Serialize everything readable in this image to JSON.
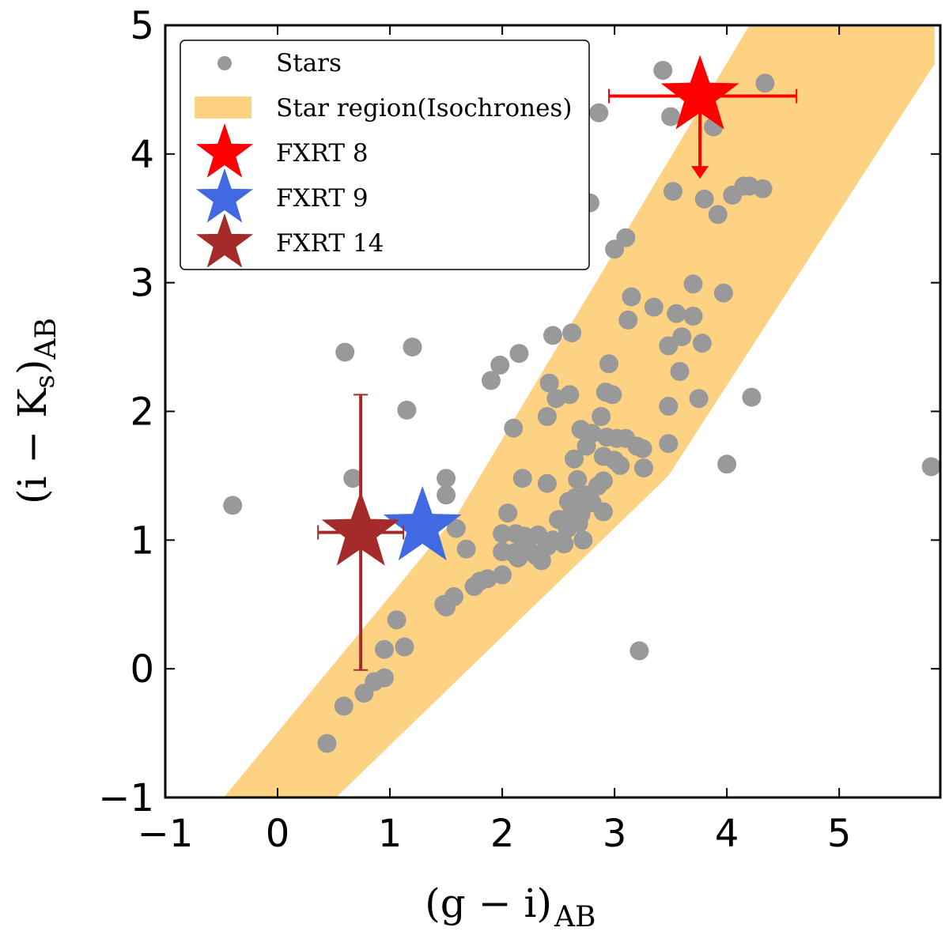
{
  "chart_data": {
    "type": "scatter",
    "title": "",
    "xlabel": {
      "main": "(g − i)",
      "sub": "AB"
    },
    "ylabel": {
      "main": "(i − K",
      "sub1": "s",
      "close": ")",
      "sub2": "AB"
    },
    "xlim": [
      -1,
      5.9
    ],
    "ylim": [
      -1,
      5
    ],
    "xticks": [
      -1,
      0,
      1,
      2,
      3,
      4,
      5
    ],
    "yticks": [
      -1,
      0,
      1,
      2,
      3,
      4,
      5
    ],
    "xtick_labels": [
      "−1",
      "0",
      "1",
      "2",
      "3",
      "4",
      "5"
    ],
    "ytick_labels": [
      "−1",
      "0",
      "1",
      "2",
      "3",
      "4",
      "5"
    ],
    "legend_position": "top-left",
    "legend": [
      {
        "label": "Stars",
        "marker": "circle",
        "color": "#999999"
      },
      {
        "label": "Star region(Isochrones)",
        "marker": "patch",
        "color": "#fdd282"
      },
      {
        "label": "FXRT 8",
        "marker": "star",
        "color": "#ff0000"
      },
      {
        "label": "FXRT 9",
        "marker": "star",
        "color": "#4169e1"
      },
      {
        "label": "FXRT 14",
        "marker": "star",
        "color": "#a52a2a"
      }
    ],
    "region": {
      "name": "Star region(Isochrones)",
      "color": "#fdd282",
      "polygon": [
        [
          -0.48,
          -1
        ],
        [
          0.52,
          -1
        ],
        [
          3.48,
          1.5
        ],
        [
          5.85,
          4.7
        ],
        [
          5.85,
          5
        ],
        [
          4.2,
          5
        ],
        [
          1.6,
          1.2
        ]
      ]
    },
    "stars": {
      "name": "Stars",
      "color": "#999999",
      "points": [
        [
          -0.4,
          1.27
        ],
        [
          0.6,
          2.46
        ],
        [
          0.67,
          1.48
        ],
        [
          0.44,
          -0.58
        ],
        [
          0.59,
          -0.29
        ],
        [
          0.77,
          -0.19
        ],
        [
          0.86,
          -0.1
        ],
        [
          0.95,
          -0.07
        ],
        [
          0.95,
          0.15
        ],
        [
          1.06,
          0.38
        ],
        [
          1.13,
          0.17
        ],
        [
          1.15,
          2.01
        ],
        [
          1.2,
          2.5
        ],
        [
          1.48,
          0.5
        ],
        [
          1.5,
          0.48
        ],
        [
          1.5,
          1.35
        ],
        [
          1.5,
          1.48
        ],
        [
          1.57,
          0.56
        ],
        [
          1.59,
          1.09
        ],
        [
          1.68,
          0.93
        ],
        [
          1.75,
          0.64
        ],
        [
          1.8,
          0.68
        ],
        [
          1.87,
          0.7
        ],
        [
          1.9,
          2.24
        ],
        [
          1.98,
          2.36
        ],
        [
          2.0,
          0.73
        ],
        [
          2.0,
          1.05
        ],
        [
          2.0,
          0.91
        ],
        [
          2.05,
          1.21
        ],
        [
          2.1,
          0.9
        ],
        [
          2.1,
          1.87
        ],
        [
          2.12,
          1.05
        ],
        [
          2.14,
          0.86
        ],
        [
          2.15,
          2.45
        ],
        [
          2.18,
          1.0
        ],
        [
          2.18,
          1.48
        ],
        [
          2.2,
          1.03
        ],
        [
          2.25,
          0.91
        ],
        [
          2.3,
          0.88
        ],
        [
          2.32,
          1.04
        ],
        [
          2.35,
          0.84
        ],
        [
          2.4,
          0.95
        ],
        [
          2.4,
          1.44
        ],
        [
          2.4,
          1.96
        ],
        [
          2.42,
          2.22
        ],
        [
          2.45,
          2.59
        ],
        [
          2.45,
          1.0
        ],
        [
          2.48,
          2.1
        ],
        [
          2.5,
          1.16
        ],
        [
          2.55,
          0.97
        ],
        [
          2.58,
          1.09
        ],
        [
          2.59,
          1.3
        ],
        [
          2.6,
          2.13
        ],
        [
          2.62,
          2.61
        ],
        [
          2.62,
          1.22
        ],
        [
          2.64,
          1.63
        ],
        [
          2.65,
          1.33
        ],
        [
          2.67,
          1.47
        ],
        [
          2.68,
          1.13
        ],
        [
          2.7,
          1.86
        ],
        [
          2.7,
          1.2
        ],
        [
          2.72,
          1.0
        ],
        [
          2.73,
          1.28
        ],
        [
          2.75,
          1.73
        ],
        [
          2.76,
          1.35
        ],
        [
          2.78,
          3.62
        ],
        [
          2.8,
          1.83
        ],
        [
          2.8,
          1.29
        ],
        [
          2.85,
          1.42
        ],
        [
          2.86,
          4.32
        ],
        [
          2.88,
          1.96
        ],
        [
          2.9,
          1.22
        ],
        [
          2.9,
          1.46
        ],
        [
          2.9,
          1.65
        ],
        [
          2.92,
          2.15
        ],
        [
          2.93,
          1.8
        ],
        [
          2.95,
          2.37
        ],
        [
          2.98,
          2.13
        ],
        [
          3.0,
          3.26
        ],
        [
          3.0,
          1.62
        ],
        [
          3.02,
          1.79
        ],
        [
          3.05,
          1.58
        ],
        [
          3.1,
          1.79
        ],
        [
          3.1,
          3.35
        ],
        [
          3.12,
          2.71
        ],
        [
          3.15,
          2.89
        ],
        [
          3.2,
          1.73
        ],
        [
          3.22,
          0.14
        ],
        [
          3.25,
          1.71
        ],
        [
          3.26,
          1.56
        ],
        [
          3.35,
          2.81
        ],
        [
          3.43,
          4.65
        ],
        [
          3.48,
          2.51
        ],
        [
          3.48,
          2.04
        ],
        [
          3.48,
          1.75
        ],
        [
          3.5,
          4.29
        ],
        [
          3.52,
          3.71
        ],
        [
          3.55,
          2.76
        ],
        [
          3.58,
          2.31
        ],
        [
          3.6,
          2.58
        ],
        [
          3.7,
          2.99
        ],
        [
          3.7,
          2.74
        ],
        [
          3.75,
          2.1
        ],
        [
          3.78,
          2.53
        ],
        [
          3.8,
          3.65
        ],
        [
          3.88,
          4.21
        ],
        [
          3.92,
          3.53
        ],
        [
          3.97,
          2.92
        ],
        [
          4.0,
          1.59
        ],
        [
          4.05,
          3.68
        ],
        [
          4.15,
          3.75
        ],
        [
          4.2,
          3.75
        ],
        [
          4.22,
          2.11
        ],
        [
          4.32,
          3.73
        ],
        [
          4.34,
          4.55
        ],
        [
          5.82,
          1.57
        ]
      ]
    },
    "fxrts": [
      {
        "name": "FXRT 8",
        "color": "#ff0000",
        "x": 3.76,
        "y": 4.45,
        "xerr": [
          0.81,
          0.86
        ],
        "yerr": [
          0,
          0
        ],
        "upper_limit": true,
        "arrow_to": 3.82
      },
      {
        "name": "FXRT 9",
        "color": "#4169e1",
        "x": 1.29,
        "y": 1.1,
        "xerr": [
          0,
          0
        ],
        "yerr": [
          0,
          0
        ],
        "upper_limit": false
      },
      {
        "name": "FXRT 14",
        "color": "#a52a2a",
        "x": 0.74,
        "y": 1.06,
        "xerr": [
          0.38,
          0.38
        ],
        "yerr": [
          1.07,
          1.07
        ],
        "upper_limit": false
      }
    ]
  }
}
